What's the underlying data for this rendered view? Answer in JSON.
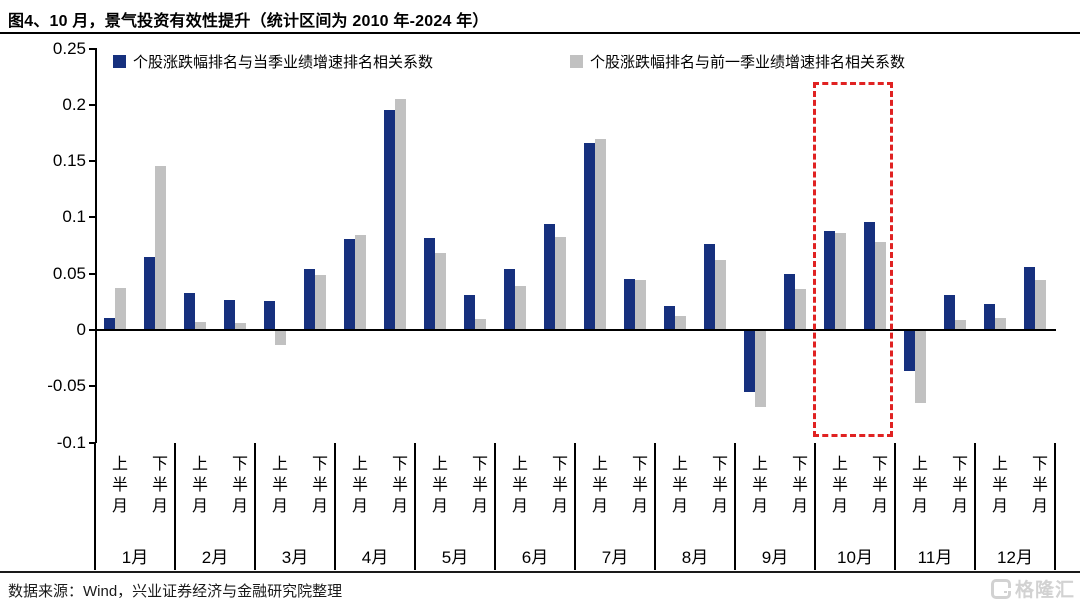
{
  "header": {
    "title": "图4、10 月，景气投资有效性提升（统计区间为 2010 年-2024 年）"
  },
  "legend": [
    {
      "label": "个股涨跌幅排名与当季业绩增速排名相关系数",
      "color": "#16307e"
    },
    {
      "label": "个股涨跌幅排名与前一季业绩增速排名相关系数",
      "color": "#c1c1c1"
    }
  ],
  "chart_data": {
    "type": "bar",
    "months": [
      "1月",
      "2月",
      "3月",
      "4月",
      "5月",
      "6月",
      "7月",
      "8月",
      "9月",
      "10月",
      "11月",
      "12月"
    ],
    "halves": [
      "上半月",
      "下半月"
    ],
    "series": [
      {
        "name": "个股涨跌幅排名与当季业绩增速排名相关系数",
        "color": "#16307e",
        "values": [
          0.011,
          0.065,
          0.033,
          0.027,
          0.026,
          0.054,
          0.081,
          0.195,
          0.082,
          0.031,
          0.054,
          0.094,
          0.166,
          0.045,
          0.021,
          0.076,
          -0.055,
          0.05,
          0.088,
          0.096,
          -0.036,
          0.031,
          0.023,
          0.056
        ]
      },
      {
        "name": "个股涨跌幅排名与前一季业绩增速排名相关系数",
        "color": "#c1c1c1",
        "values": [
          0.037,
          0.146,
          0.007,
          0.006,
          -0.013,
          0.049,
          0.084,
          0.205,
          0.068,
          0.01,
          0.039,
          0.083,
          0.17,
          0.044,
          0.012,
          0.062,
          -0.068,
          0.036,
          0.086,
          0.078,
          -0.065,
          0.009,
          0.011,
          0.044
        ]
      }
    ],
    "ylim": [
      -0.1,
      0.25
    ],
    "yticks": [
      0.25,
      0.2,
      0.15,
      0.1,
      0.05,
      0,
      -0.05,
      -0.1
    ],
    "grid": false,
    "legend_position": "top",
    "highlight": {
      "month": "10月",
      "style": "red-dashed-box",
      "color": "#e02222"
    }
  },
  "footer": {
    "source": "数据来源：Wind，兴业证券经济与金融研究院整理"
  },
  "watermark": {
    "icon": "gelonghui-logo",
    "text": "格隆汇"
  }
}
